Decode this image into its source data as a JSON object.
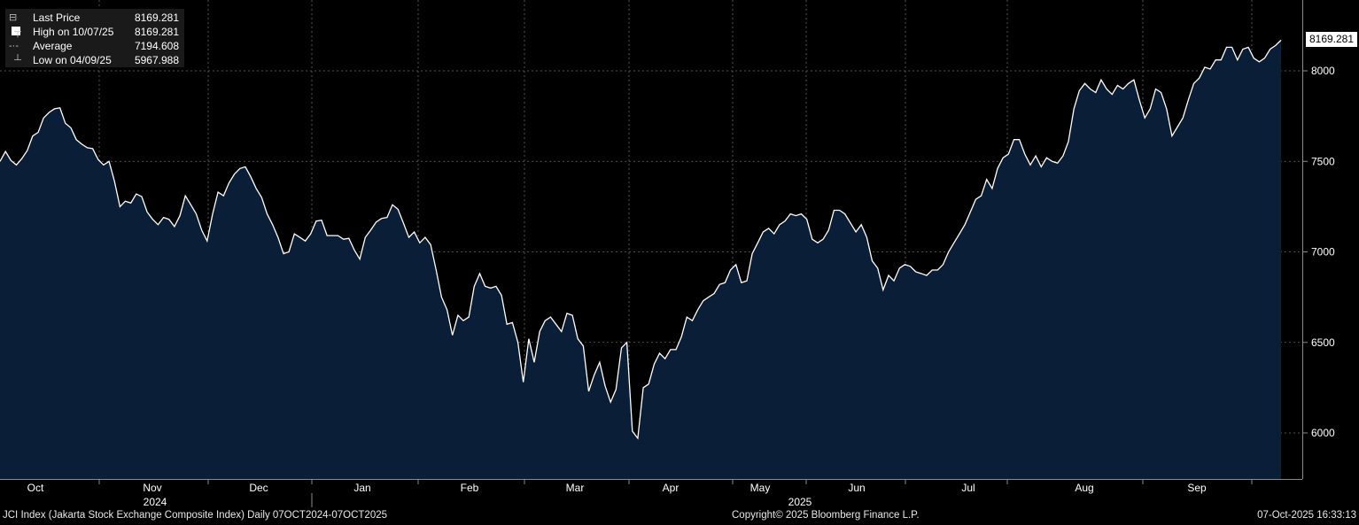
{
  "legend": {
    "last_price_label": "Last Price",
    "last_price_value": "8169.281",
    "high_label": "High on 10/07/25",
    "high_value": "8169.281",
    "average_label": "Average",
    "average_value": "7194.608",
    "low_label": "Low on 04/09/25",
    "low_value": "5967.988"
  },
  "price_tag": "8169.281",
  "footer": {
    "left": "JCI Index (Jakarta Stock Exchange Composite Index) Daily 07OCT2024-07OCT2025",
    "center": "Copyright© 2025 Bloomberg Finance L.P.",
    "right": "07-Oct-2025 16:33:13"
  },
  "colors": {
    "background": "#000000",
    "area_fill": "#0a1e38",
    "line": "#ffffff",
    "grid": "#6a6a6a"
  },
  "chart_data": {
    "type": "area",
    "ylim": [
      5750,
      8350
    ],
    "y_ticks": [
      6000,
      6500,
      7000,
      7500,
      8000
    ],
    "grid": true,
    "months": [
      "Oct",
      "Nov",
      "Dec",
      "Jan",
      "Feb",
      "Mar",
      "Apr",
      "May",
      "Jun",
      "Jul",
      "Aug",
      "Sep"
    ],
    "years": [
      "2024",
      "2025"
    ],
    "series": [
      {
        "values": [
          7500,
          7555,
          7505,
          7480,
          7515,
          7560,
          7640,
          7660,
          7740,
          7770,
          7790,
          7795,
          7710,
          7685,
          7620,
          7595,
          7575,
          7570,
          7510,
          7480,
          7500,
          7390,
          7250,
          7280,
          7270,
          7320,
          7305,
          7220,
          7180,
          7150,
          7190,
          7180,
          7140,
          7200,
          7310,
          7260,
          7210,
          7120,
          7060,
          7210,
          7330,
          7310,
          7380,
          7430,
          7460,
          7470,
          7415,
          7350,
          7300,
          7210,
          7150,
          7080,
          6990,
          7000,
          7100,
          7080,
          7060,
          7100,
          7170,
          7175,
          7090,
          7090,
          7090,
          7070,
          7075,
          7010,
          6960,
          7080,
          7120,
          7165,
          7185,
          7190,
          7260,
          7235,
          7160,
          7080,
          7110,
          7050,
          7080,
          7040,
          6900,
          6750,
          6680,
          6540,
          6650,
          6620,
          6640,
          6810,
          6880,
          6810,
          6800,
          6810,
          6760,
          6600,
          6610,
          6500,
          6280,
          6520,
          6390,
          6560,
          6620,
          6640,
          6600,
          6560,
          6660,
          6650,
          6520,
          6480,
          6230,
          6320,
          6390,
          6260,
          6170,
          6240,
          6470,
          6500,
          6010,
          5970,
          6250,
          6270,
          6380,
          6440,
          6410,
          6460,
          6460,
          6530,
          6640,
          6620,
          6680,
          6730,
          6750,
          6770,
          6820,
          6830,
          6900,
          6930,
          6830,
          6840,
          6990,
          7050,
          7110,
          7130,
          7100,
          7150,
          7170,
          7210,
          7200,
          7210,
          7180,
          7070,
          7050,
          7070,
          7120,
          7230,
          7230,
          7210,
          7160,
          7110,
          7150,
          7080,
          6950,
          6910,
          6790,
          6870,
          6840,
          6910,
          6930,
          6920,
          6890,
          6880,
          6870,
          6900,
          6900,
          6930,
          7000,
          7050,
          7100,
          7150,
          7220,
          7290,
          7310,
          7400,
          7350,
          7460,
          7520,
          7540,
          7620,
          7620,
          7540,
          7480,
          7530,
          7470,
          7520,
          7500,
          7490,
          7530,
          7610,
          7790,
          7890,
          7930,
          7900,
          7880,
          7950,
          7900,
          7870,
          7920,
          7900,
          7930,
          7950,
          7840,
          7740,
          7790,
          7900,
          7880,
          7790,
          7640,
          7690,
          7740,
          7840,
          7930,
          7960,
          8020,
          8010,
          8060,
          8060,
          8130,
          8130,
          8060,
          8120,
          8130,
          8070,
          8050,
          8070,
          8120,
          8140,
          8169.281
        ]
      }
    ]
  }
}
